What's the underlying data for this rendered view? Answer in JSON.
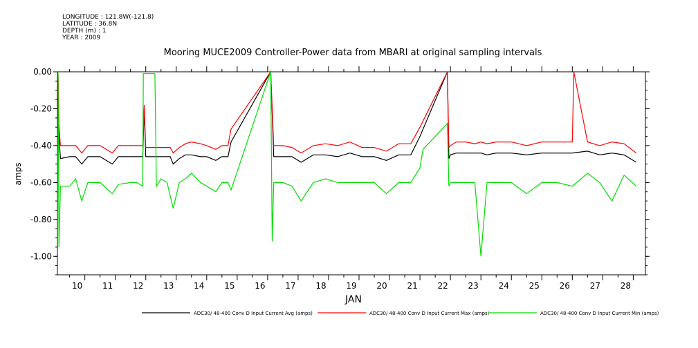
{
  "header": {
    "longitude": "LONGITUDE : 121.8W(-121.8)",
    "latitude": "LATITUDE : 36.8N",
    "depth": "DEPTH (m) : 1",
    "year": "YEAR : 2009"
  },
  "chart_data": {
    "type": "line",
    "title": "Mooring MUCE2009 Controller-Power data from MBARI at original sampling intervals",
    "xlabel": "JAN",
    "ylabel": "amps",
    "xlim": [
      9.6,
      28.9
    ],
    "ylim": [
      -1.1,
      0.0
    ],
    "yticks": [
      0.0,
      -0.2,
      -0.4,
      -0.6,
      -0.8,
      -1.0
    ],
    "ytick_labels": [
      "0.00",
      "-0.20",
      "-0.40",
      "-0.60",
      "-0.80",
      "-1.00"
    ],
    "xticks": [
      10,
      11,
      12,
      13,
      14,
      15,
      16,
      17,
      18,
      19,
      20,
      21,
      22,
      23,
      24,
      25,
      26,
      27,
      28
    ],
    "xtick_labels": [
      "10",
      "11",
      "12",
      "13",
      "14",
      "15",
      "16",
      "17",
      "18",
      "19",
      "20",
      "21",
      "22",
      "23",
      "24",
      "25",
      "26",
      "27",
      "28"
    ],
    "grid": false,
    "legend_position": "bottom",
    "series": [
      {
        "name": "ADC30/ 48-400 Conv D Input Current  Avg (amps)",
        "color": "#000000",
        "x": [
          9.62,
          9.65,
          9.7,
          10.0,
          10.2,
          10.4,
          10.6,
          11.0,
          11.4,
          11.6,
          12.0,
          12.2,
          12.4,
          12.45,
          12.5,
          12.9,
          13.1,
          13.3,
          13.4,
          13.6,
          13.8,
          14.0,
          14.3,
          14.5,
          14.8,
          15.0,
          15.2,
          15.3,
          16.6,
          16.7,
          17.0,
          17.3,
          17.6,
          18.0,
          18.4,
          18.8,
          19.2,
          19.6,
          20.0,
          20.4,
          20.8,
          21.2,
          21.5,
          22.4,
          22.45,
          22.5,
          22.7,
          23.0,
          23.3,
          23.5,
          23.7,
          24.0,
          24.5,
          25.0,
          25.5,
          26.0,
          26.5,
          27.0,
          27.4,
          27.8,
          28.2,
          28.6
        ],
        "values": [
          -0.0,
          -0.35,
          -0.47,
          -0.46,
          -0.46,
          -0.5,
          -0.46,
          -0.46,
          -0.5,
          -0.46,
          -0.46,
          -0.46,
          -0.46,
          -0.2,
          -0.46,
          -0.46,
          -0.46,
          -0.46,
          -0.5,
          -0.47,
          -0.45,
          -0.45,
          -0.46,
          -0.46,
          -0.48,
          -0.46,
          -0.46,
          -0.38,
          -0.0,
          -0.46,
          -0.46,
          -0.46,
          -0.49,
          -0.45,
          -0.45,
          -0.46,
          -0.44,
          -0.46,
          -0.46,
          -0.48,
          -0.45,
          -0.45,
          -0.35,
          -0.0,
          -0.47,
          -0.45,
          -0.44,
          -0.44,
          -0.44,
          -0.44,
          -0.45,
          -0.44,
          -0.44,
          -0.45,
          -0.44,
          -0.44,
          -0.44,
          -0.43,
          -0.45,
          -0.44,
          -0.45,
          -0.49
        ]
      },
      {
        "name": "ADC30/ 48-400 Conv D Input Current  Max (amps)",
        "color": "#ff0000",
        "x": [
          9.62,
          9.65,
          9.7,
          10.0,
          10.2,
          10.4,
          10.6,
          11.0,
          11.4,
          11.6,
          12.0,
          12.2,
          12.4,
          12.45,
          12.5,
          12.9,
          13.1,
          13.3,
          13.4,
          13.6,
          13.8,
          14.0,
          14.3,
          14.5,
          14.8,
          15.0,
          15.2,
          15.3,
          16.6,
          16.7,
          17.0,
          17.3,
          17.6,
          18.0,
          18.4,
          18.8,
          19.2,
          19.6,
          20.0,
          20.4,
          20.8,
          21.2,
          21.5,
          22.4,
          22.45,
          22.5,
          22.7,
          23.0,
          23.3,
          23.5,
          23.7,
          24.0,
          24.5,
          25.0,
          25.5,
          26.0,
          26.5,
          26.55,
          27.0,
          27.4,
          27.8,
          28.2,
          28.6
        ],
        "values": [
          -0.0,
          -0.3,
          -0.4,
          -0.4,
          -0.4,
          -0.44,
          -0.4,
          -0.4,
          -0.44,
          -0.4,
          -0.4,
          -0.4,
          -0.4,
          -0.18,
          -0.41,
          -0.41,
          -0.41,
          -0.41,
          -0.44,
          -0.41,
          -0.39,
          -0.38,
          -0.39,
          -0.4,
          -0.42,
          -0.4,
          -0.4,
          -0.31,
          -0.0,
          -0.4,
          -0.4,
          -0.41,
          -0.44,
          -0.4,
          -0.39,
          -0.4,
          -0.38,
          -0.41,
          -0.41,
          -0.43,
          -0.39,
          -0.39,
          -0.3,
          -0.0,
          -0.41,
          -0.4,
          -0.38,
          -0.38,
          -0.39,
          -0.38,
          -0.39,
          -0.38,
          -0.38,
          -0.4,
          -0.38,
          -0.38,
          -0.38,
          -0.0,
          -0.38,
          -0.4,
          -0.38,
          -0.39,
          -0.44
        ]
      },
      {
        "name": "ADC30/ 48-400 Conv D Input Current  Min (amps)",
        "color": "#00dd00",
        "x": [
          9.62,
          9.65,
          9.7,
          10.0,
          10.2,
          10.4,
          10.6,
          11.0,
          11.4,
          11.6,
          12.0,
          12.2,
          12.4,
          12.42,
          12.8,
          12.85,
          13.0,
          13.2,
          13.4,
          13.6,
          13.8,
          14.0,
          14.3,
          14.5,
          14.8,
          15.0,
          15.2,
          15.3,
          16.6,
          16.65,
          16.7,
          17.0,
          17.3,
          17.6,
          18.0,
          18.4,
          18.8,
          19.2,
          19.6,
          20.0,
          20.4,
          20.8,
          21.2,
          21.5,
          21.6,
          22.4,
          22.45,
          22.5,
          22.7,
          23.0,
          23.3,
          23.5,
          23.7,
          24.0,
          24.5,
          25.0,
          25.5,
          26.0,
          26.5,
          27.0,
          27.4,
          27.8,
          28.2,
          28.6
        ],
        "values": [
          -0.0,
          -0.95,
          -0.62,
          -0.62,
          -0.58,
          -0.7,
          -0.6,
          -0.6,
          -0.66,
          -0.61,
          -0.6,
          -0.6,
          -0.62,
          -0.01,
          -0.01,
          -0.62,
          -0.58,
          -0.6,
          -0.74,
          -0.6,
          -0.58,
          -0.55,
          -0.6,
          -0.62,
          -0.65,
          -0.6,
          -0.6,
          -0.64,
          -0.0,
          -0.92,
          -0.6,
          -0.6,
          -0.62,
          -0.7,
          -0.6,
          -0.58,
          -0.6,
          -0.6,
          -0.6,
          -0.6,
          -0.66,
          -0.6,
          -0.6,
          -0.52,
          -0.42,
          -0.28,
          -0.62,
          -0.6,
          -0.6,
          -0.6,
          -0.6,
          -1.0,
          -0.6,
          -0.6,
          -0.6,
          -0.66,
          -0.6,
          -0.6,
          -0.62,
          -0.55,
          -0.6,
          -0.7,
          -0.56,
          -0.62
        ]
      }
    ]
  }
}
